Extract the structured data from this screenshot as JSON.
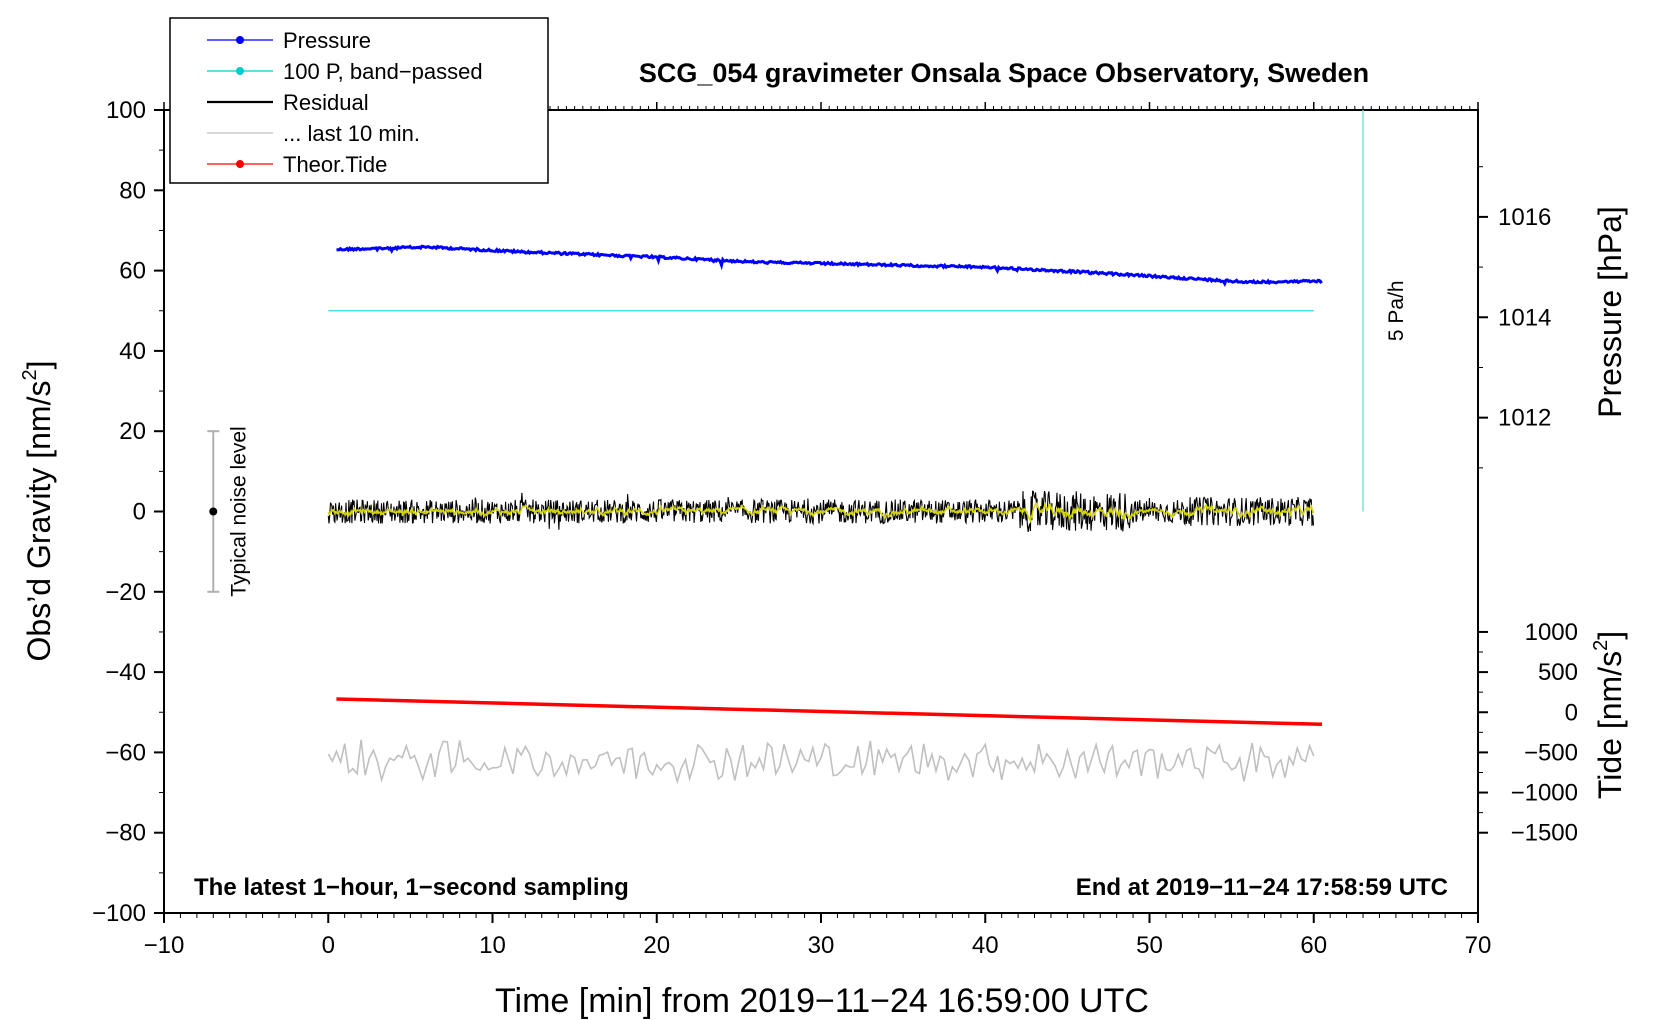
{
  "chart_data": {
    "type": "line",
    "title": "SCG_054 gravimeter Onsala Space Observatory, Sweden",
    "xlabel": "Time [min] from 2019−11−24 16:59:00 UTC",
    "ylabel_left": "Obs’d Gravity [nm/s",
    "ylabel_left_sup": "2",
    "ylabel_left_close": "]",
    "ylabel_right_pressure": "Pressure [hPa]",
    "ylabel_right_tide": "Tide [nm/s",
    "ylabel_right_tide_sup": "2",
    "ylabel_right_tide_close": "]",
    "xlim": [
      -10,
      70
    ],
    "ylim": [
      -100,
      100
    ],
    "x_ticks": [
      "−10",
      "0",
      "10",
      "20",
      "30",
      "40",
      "50",
      "60",
      "70"
    ],
    "x_tick_values": [
      -10,
      0,
      10,
      20,
      30,
      40,
      50,
      60,
      70
    ],
    "y_ticks": [
      "100",
      "80",
      "60",
      "40",
      "20",
      "0",
      "−20",
      "−40",
      "−60",
      "−80",
      "−100"
    ],
    "y_tick_values": [
      100,
      80,
      60,
      40,
      20,
      0,
      -20,
      -40,
      -60,
      -80,
      -100
    ],
    "pressure_axis": {
      "ticks": [
        "1016",
        "1014",
        "1012"
      ],
      "tick_values": [
        1016,
        1014,
        1012
      ],
      "ref_left_value": 60,
      "ref_pressure": 1014.93,
      "left_units_per_hpa": 12.5
    },
    "tide_axis": {
      "ticks": [
        "1000",
        "500",
        "0",
        "−500",
        "−1000",
        "−1500"
      ],
      "tick_values": [
        1000,
        500,
        0,
        -500,
        -1000,
        -1500
      ],
      "ref_left_value": -50,
      "ref_tide": 0,
      "left_units_per_nms2": 0.02
    },
    "series": [
      {
        "name": "Pressure",
        "color": "#0000ff",
        "unit": "hPa",
        "x": [
          0.5,
          6,
          12,
          20,
          26,
          33,
          40,
          46,
          52,
          56,
          60.5
        ],
        "values": [
          1015.35,
          1015.4,
          1015.3,
          1015.2,
          1015.1,
          1015.05,
          1015.0,
          1014.9,
          1014.78,
          1014.7,
          1014.72
        ]
      },
      {
        "name": "100 P, band−passed",
        "color": "#00cccc",
        "x": [
          0,
          60
        ],
        "values": [
          50,
          50
        ]
      },
      {
        "name": "Residual",
        "color": "#000000",
        "x": [
          0,
          60
        ],
        "values": [
          0,
          0
        ],
        "noise_amplitude": 3
      },
      {
        "name": "... last 10 min.",
        "color": "#c0c0c0",
        "x": [
          0,
          60
        ],
        "values": [
          -62,
          -62
        ],
        "noise_amplitude": 4
      },
      {
        "name": "Theor.Tide",
        "color": "#ff0000",
        "unit": "nm/s2",
        "x": [
          0.5,
          60.5
        ],
        "values": [
          165,
          -150
        ]
      }
    ],
    "legend": [
      {
        "label": "Pressure",
        "color": "#0000ff",
        "marker": true
      },
      {
        "label": "100 P, band−passed",
        "color": "#00cccc",
        "marker": true
      },
      {
        "label": "Residual",
        "color": "#000000",
        "marker": false
      },
      {
        "label": "... last 10 min.",
        "color": "#c0c0c0",
        "marker": false
      },
      {
        "label": "Theor.Tide",
        "color": "#ff0000",
        "marker": true
      }
    ],
    "legend_position": "top-left",
    "noise_bar": {
      "x": -7,
      "center": 0,
      "low": -20,
      "high": 20,
      "label": "Typical noise level"
    },
    "rate_bar": {
      "x": 63,
      "low": 0,
      "high": 100,
      "label": "5 Pa/h",
      "color": "#7fdede"
    },
    "annotations": {
      "bottom_left": "The latest 1−hour, 1−second sampling",
      "bottom_right": "End at 2019−11−24 17:58:59 UTC"
    }
  }
}
